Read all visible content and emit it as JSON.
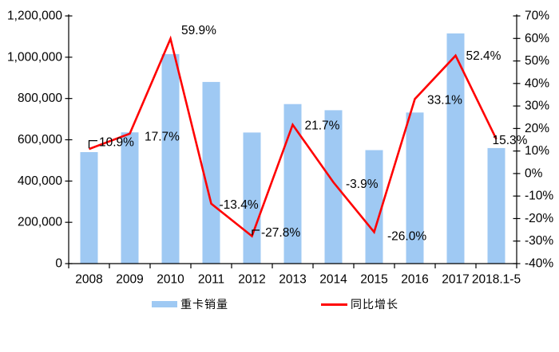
{
  "chart_data": {
    "type": "bar",
    "combo": [
      "bar",
      "line"
    ],
    "title": "",
    "categories": [
      "2008",
      "2009",
      "2010",
      "2011",
      "2012",
      "2013",
      "2014",
      "2015",
      "2016",
      "2017",
      "2018.1-5"
    ],
    "series": [
      {
        "name": "重卡销量",
        "type": "bar",
        "axis": "left",
        "color": "#9FC9F3",
        "values": [
          540000,
          636000,
          1015000,
          880000,
          635000,
          773000,
          743000,
          550000,
          732000,
          1115000,
          560000
        ]
      },
      {
        "name": "同比增长",
        "type": "line",
        "axis": "right",
        "color": "#FF0000",
        "values": [
          10.9,
          17.7,
          59.9,
          -13.4,
          -27.8,
          21.7,
          -3.9,
          -26.0,
          33.1,
          52.4,
          15.3
        ],
        "labels": [
          "10.9%",
          "17.7%",
          "59.9%",
          "-13.4%",
          "-27.8%",
          "21.7%",
          "-3.9%",
          "-26.0%",
          "33.1%",
          "52.4%",
          "15.3%"
        ]
      }
    ],
    "left_axis": {
      "min": 0,
      "max": 1200000,
      "step": 200000,
      "tick_labels": [
        "0",
        "200,000",
        "400,000",
        "600,000",
        "800,000",
        "1,000,000",
        "1,200,000"
      ]
    },
    "right_axis": {
      "min": -40,
      "max": 70,
      "step": 10,
      "tick_labels": [
        "-40%",
        "-30%",
        "-20%",
        "-10%",
        "0%",
        "10%",
        "20%",
        "30%",
        "40%",
        "50%",
        "60%",
        "70%"
      ]
    },
    "grid": false,
    "legend_position": "bottom",
    "colors": {
      "bar_fill": "#9FC9F3",
      "line_stroke": "#FF0000",
      "axis_stroke": "#000000",
      "text": "#000000",
      "background": "#FFFFFF"
    }
  }
}
